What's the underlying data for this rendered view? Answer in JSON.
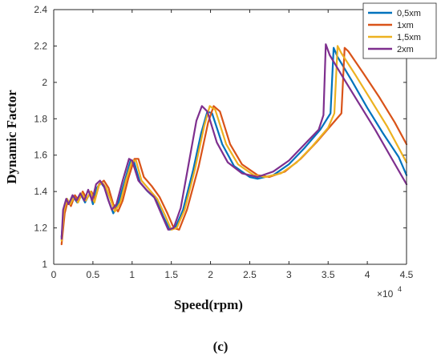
{
  "chart_data": {
    "type": "line",
    "xlabel": "Speed(rpm)",
    "ylabel": "Dynamic Factor",
    "x_exponent_label": "×10",
    "x_exponent_power": "4",
    "caption": "(c)",
    "xlim": [
      0,
      4.5
    ],
    "ylim": [
      1,
      2.4
    ],
    "xticks": [
      0,
      0.5,
      1,
      1.5,
      2,
      2.5,
      3,
      3.5,
      4,
      4.5
    ],
    "xtick_labels": [
      "0",
      "0.5",
      "1",
      "1.5",
      "2",
      "2.5",
      "3",
      "3.5",
      "4",
      "4.5"
    ],
    "yticks": [
      1,
      1.2,
      1.4,
      1.6,
      1.8,
      2,
      2.2,
      2.4
    ],
    "ytick_labels": [
      "1",
      "1.2",
      "1.4",
      "1.6",
      "1.8",
      "2",
      "2.2",
      "2.4"
    ],
    "grid": false,
    "legend_position": "top-right",
    "series": [
      {
        "name": "0,5xm",
        "color": "#0072BD",
        "points": [
          [
            0.1,
            1.15
          ],
          [
            0.13,
            1.3
          ],
          [
            0.17,
            1.36
          ],
          [
            0.2,
            1.33
          ],
          [
            0.25,
            1.37
          ],
          [
            0.3,
            1.34
          ],
          [
            0.35,
            1.38
          ],
          [
            0.4,
            1.34
          ],
          [
            0.46,
            1.39
          ],
          [
            0.5,
            1.33
          ],
          [
            0.55,
            1.42
          ],
          [
            0.6,
            1.45
          ],
          [
            0.65,
            1.42
          ],
          [
            0.7,
            1.35
          ],
          [
            0.76,
            1.28
          ],
          [
            0.82,
            1.33
          ],
          [
            0.9,
            1.45
          ],
          [
            0.98,
            1.57
          ],
          [
            1.02,
            1.57
          ],
          [
            1.1,
            1.45
          ],
          [
            1.2,
            1.4
          ],
          [
            1.3,
            1.36
          ],
          [
            1.4,
            1.26
          ],
          [
            1.48,
            1.19
          ],
          [
            1.55,
            1.2
          ],
          [
            1.65,
            1.3
          ],
          [
            1.78,
            1.52
          ],
          [
            1.88,
            1.72
          ],
          [
            1.96,
            1.84
          ],
          [
            2.02,
            1.83
          ],
          [
            2.15,
            1.66
          ],
          [
            2.3,
            1.54
          ],
          [
            2.5,
            1.48
          ],
          [
            2.6,
            1.47
          ],
          [
            2.8,
            1.49
          ],
          [
            3.0,
            1.55
          ],
          [
            3.2,
            1.64
          ],
          [
            3.4,
            1.74
          ],
          [
            3.53,
            1.83
          ],
          [
            3.57,
            2.19
          ],
          [
            3.62,
            2.14
          ],
          [
            3.8,
            2.01
          ],
          [
            4.0,
            1.86
          ],
          [
            4.2,
            1.72
          ],
          [
            4.4,
            1.59
          ],
          [
            4.5,
            1.49
          ]
        ]
      },
      {
        "name": "1xm",
        "color": "#D95319",
        "points": [
          [
            0.1,
            1.11
          ],
          [
            0.14,
            1.28
          ],
          [
            0.18,
            1.35
          ],
          [
            0.22,
            1.32
          ],
          [
            0.27,
            1.38
          ],
          [
            0.32,
            1.35
          ],
          [
            0.37,
            1.4
          ],
          [
            0.42,
            1.36
          ],
          [
            0.48,
            1.4
          ],
          [
            0.53,
            1.36
          ],
          [
            0.58,
            1.44
          ],
          [
            0.64,
            1.46
          ],
          [
            0.7,
            1.42
          ],
          [
            0.76,
            1.33
          ],
          [
            0.82,
            1.29
          ],
          [
            0.88,
            1.35
          ],
          [
            0.95,
            1.47
          ],
          [
            1.03,
            1.58
          ],
          [
            1.08,
            1.58
          ],
          [
            1.15,
            1.48
          ],
          [
            1.25,
            1.43
          ],
          [
            1.35,
            1.37
          ],
          [
            1.45,
            1.28
          ],
          [
            1.53,
            1.2
          ],
          [
            1.6,
            1.19
          ],
          [
            1.7,
            1.3
          ],
          [
            1.85,
            1.54
          ],
          [
            1.97,
            1.78
          ],
          [
            2.04,
            1.87
          ],
          [
            2.12,
            1.84
          ],
          [
            2.25,
            1.66
          ],
          [
            2.4,
            1.55
          ],
          [
            2.6,
            1.49
          ],
          [
            2.75,
            1.48
          ],
          [
            2.95,
            1.51
          ],
          [
            3.15,
            1.58
          ],
          [
            3.35,
            1.67
          ],
          [
            3.55,
            1.77
          ],
          [
            3.67,
            1.83
          ],
          [
            3.71,
            2.19
          ],
          [
            3.76,
            2.17
          ],
          [
            3.95,
            2.05
          ],
          [
            4.15,
            1.92
          ],
          [
            4.35,
            1.78
          ],
          [
            4.5,
            1.66
          ]
        ]
      },
      {
        "name": "1,5xm",
        "color": "#EDB120",
        "points": [
          [
            0.1,
            1.13
          ],
          [
            0.13,
            1.29
          ],
          [
            0.17,
            1.36
          ],
          [
            0.21,
            1.33
          ],
          [
            0.26,
            1.37
          ],
          [
            0.31,
            1.34
          ],
          [
            0.36,
            1.39
          ],
          [
            0.41,
            1.35
          ],
          [
            0.47,
            1.4
          ],
          [
            0.52,
            1.34
          ],
          [
            0.57,
            1.43
          ],
          [
            0.62,
            1.45
          ],
          [
            0.67,
            1.42
          ],
          [
            0.73,
            1.35
          ],
          [
            0.78,
            1.29
          ],
          [
            0.85,
            1.34
          ],
          [
            0.92,
            1.46
          ],
          [
            1.0,
            1.57
          ],
          [
            1.05,
            1.57
          ],
          [
            1.12,
            1.46
          ],
          [
            1.22,
            1.41
          ],
          [
            1.32,
            1.36
          ],
          [
            1.42,
            1.27
          ],
          [
            1.5,
            1.19
          ],
          [
            1.57,
            1.2
          ],
          [
            1.67,
            1.3
          ],
          [
            1.8,
            1.52
          ],
          [
            1.92,
            1.76
          ],
          [
            1.99,
            1.87
          ],
          [
            2.06,
            1.85
          ],
          [
            2.2,
            1.66
          ],
          [
            2.35,
            1.55
          ],
          [
            2.55,
            1.49
          ],
          [
            2.7,
            1.48
          ],
          [
            2.9,
            1.5
          ],
          [
            3.1,
            1.56
          ],
          [
            3.3,
            1.65
          ],
          [
            3.5,
            1.75
          ],
          [
            3.58,
            1.83
          ],
          [
            3.62,
            2.2
          ],
          [
            3.67,
            2.16
          ],
          [
            3.85,
            2.04
          ],
          [
            4.05,
            1.9
          ],
          [
            4.25,
            1.76
          ],
          [
            4.5,
            1.56
          ]
        ]
      },
      {
        "name": "2xm",
        "color": "#7E2F8E",
        "points": [
          [
            0.1,
            1.14
          ],
          [
            0.12,
            1.3
          ],
          [
            0.16,
            1.36
          ],
          [
            0.19,
            1.33
          ],
          [
            0.24,
            1.38
          ],
          [
            0.29,
            1.35
          ],
          [
            0.34,
            1.39
          ],
          [
            0.39,
            1.35
          ],
          [
            0.44,
            1.41
          ],
          [
            0.49,
            1.35
          ],
          [
            0.54,
            1.44
          ],
          [
            0.59,
            1.46
          ],
          [
            0.64,
            1.43
          ],
          [
            0.69,
            1.36
          ],
          [
            0.74,
            1.3
          ],
          [
            0.8,
            1.33
          ],
          [
            0.88,
            1.46
          ],
          [
            0.96,
            1.58
          ],
          [
            1.0,
            1.57
          ],
          [
            1.08,
            1.46
          ],
          [
            1.18,
            1.41
          ],
          [
            1.28,
            1.37
          ],
          [
            1.38,
            1.27
          ],
          [
            1.46,
            1.19
          ],
          [
            1.53,
            1.2
          ],
          [
            1.62,
            1.31
          ],
          [
            1.72,
            1.55
          ],
          [
            1.82,
            1.79
          ],
          [
            1.89,
            1.87
          ],
          [
            1.96,
            1.84
          ],
          [
            2.08,
            1.67
          ],
          [
            2.22,
            1.56
          ],
          [
            2.4,
            1.5
          ],
          [
            2.6,
            1.48
          ],
          [
            2.8,
            1.51
          ],
          [
            3.0,
            1.57
          ],
          [
            3.2,
            1.66
          ],
          [
            3.38,
            1.74
          ],
          [
            3.44,
            1.82
          ],
          [
            3.47,
            2.21
          ],
          [
            3.52,
            2.15
          ],
          [
            3.7,
            2.02
          ],
          [
            3.9,
            1.88
          ],
          [
            4.1,
            1.74
          ],
          [
            4.3,
            1.59
          ],
          [
            4.5,
            1.44
          ]
        ]
      }
    ]
  }
}
